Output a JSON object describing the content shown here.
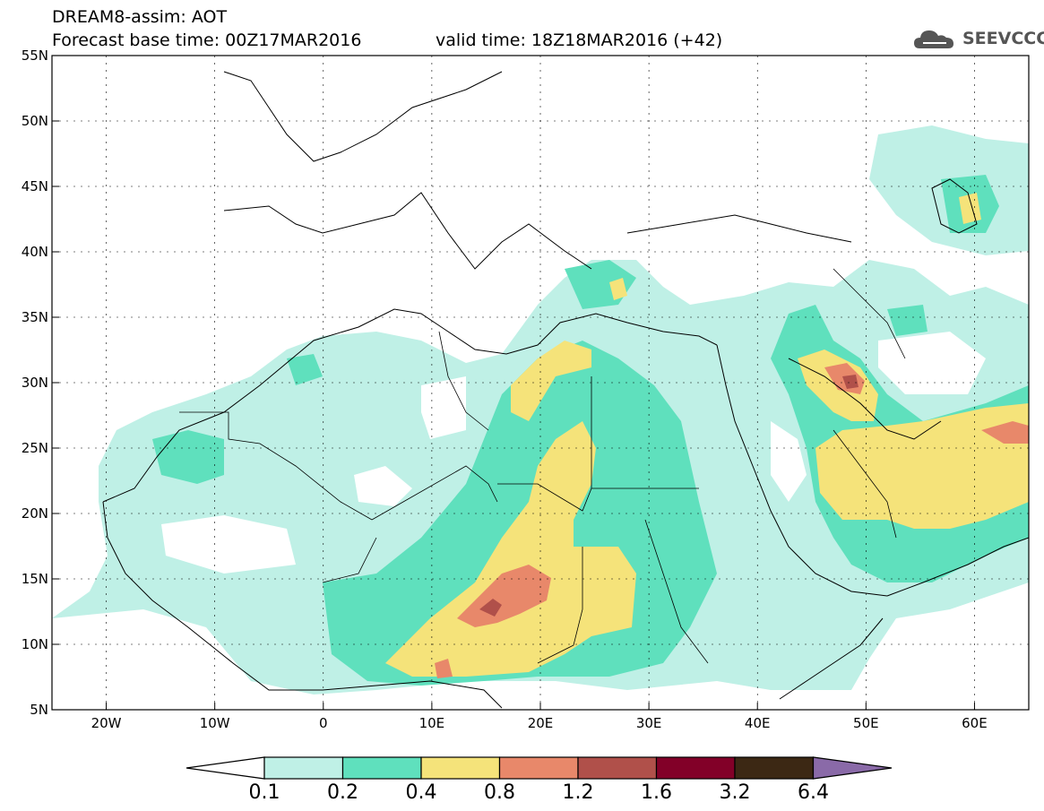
{
  "header": {
    "title": "DREAM8-assim: AOT",
    "base_time": "Forecast base time: 00Z17MAR2016",
    "valid_time": "valid time: 18Z18MAR2016 (+42)"
  },
  "logo": {
    "text": "SEEVCCC",
    "icon": "cloud-icon"
  },
  "map": {
    "lon_range": [
      -25,
      65
    ],
    "lat_range": [
      5,
      55
    ],
    "lat_ticks": [
      "5N",
      "10N",
      "15N",
      "20N",
      "25N",
      "30N",
      "35N",
      "40N",
      "45N",
      "50N",
      "55N"
    ],
    "lon_ticks": [
      "20W",
      "10W",
      "0",
      "10E",
      "20E",
      "30E",
      "40E",
      "50E",
      "60E"
    ],
    "lat_values": [
      5,
      10,
      15,
      20,
      25,
      30,
      35,
      40,
      45,
      50,
      55
    ],
    "lon_values": [
      -20,
      -10,
      0,
      10,
      20,
      30,
      40,
      50,
      60
    ]
  },
  "colorbar": {
    "labels": [
      "0.1",
      "0.2",
      "0.4",
      "0.8",
      "1.2",
      "1.6",
      "3.2",
      "6.4"
    ],
    "colors": [
      "#ffffff",
      "#bff0e6",
      "#5fe0bd",
      "#f5e37a",
      "#e8886a",
      "#b0504a",
      "#820028",
      "#3c2814",
      "#8a6aa8"
    ]
  },
  "palette": {
    "level1": "#bff0e6",
    "level2": "#5fe0bd",
    "level3": "#f5e37a",
    "level4": "#e8886a",
    "level5": "#b0504a"
  }
}
